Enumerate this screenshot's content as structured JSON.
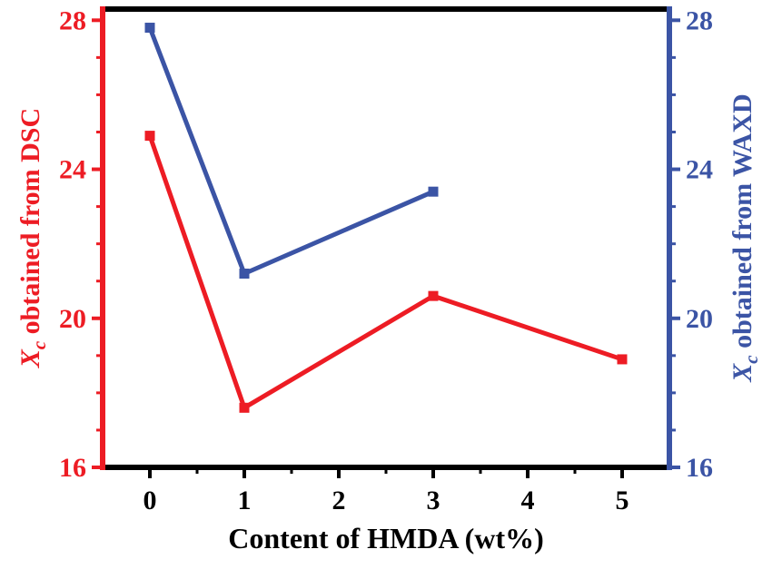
{
  "figure": {
    "xlabel": "Content of HMDA (wt%)",
    "left_ylabel": {
      "symbol": "X",
      "subscript": "c",
      "text": " obtained from DSC"
    },
    "right_ylabel": {
      "symbol": "X",
      "subscript": "c",
      "text": " obtained from WAXD"
    }
  },
  "chart_data": {
    "type": "line",
    "title": "",
    "xlabel": "Content of HMDA (wt%)",
    "left_ylabel": "Xc obtained from DSC",
    "right_ylabel": "Xc obtained from WAXD",
    "xlim": [
      -0.5,
      5.5
    ],
    "ylim": [
      16,
      28.3
    ],
    "x_ticks": [
      0,
      1,
      2,
      3,
      4,
      5
    ],
    "y_ticks": [
      16,
      20,
      24,
      28
    ],
    "x_minor_step": 0.5,
    "y_minor_step": 1,
    "grid": false,
    "legend": "none",
    "axes_colors": {
      "left": "#ed1c24",
      "right": "#3b54a5",
      "top": "#000000",
      "bottom": "#000000"
    },
    "tick_label_colors": {
      "left": "#ed1c24",
      "right": "#3b54a5",
      "bottom": "#000000"
    },
    "series": [
      {
        "name": "Xc obtained from DSC",
        "axis": "left",
        "color": "#ed1c24",
        "marker": "square",
        "x": [
          0,
          1,
          3,
          5
        ],
        "y": [
          24.9,
          17.6,
          20.6,
          18.9
        ]
      },
      {
        "name": "Xc obtained from WAXD",
        "axis": "right",
        "color": "#3b54a5",
        "marker": "square",
        "x": [
          0,
          1,
          3
        ],
        "y": [
          27.8,
          21.2,
          23.4
        ]
      }
    ]
  }
}
